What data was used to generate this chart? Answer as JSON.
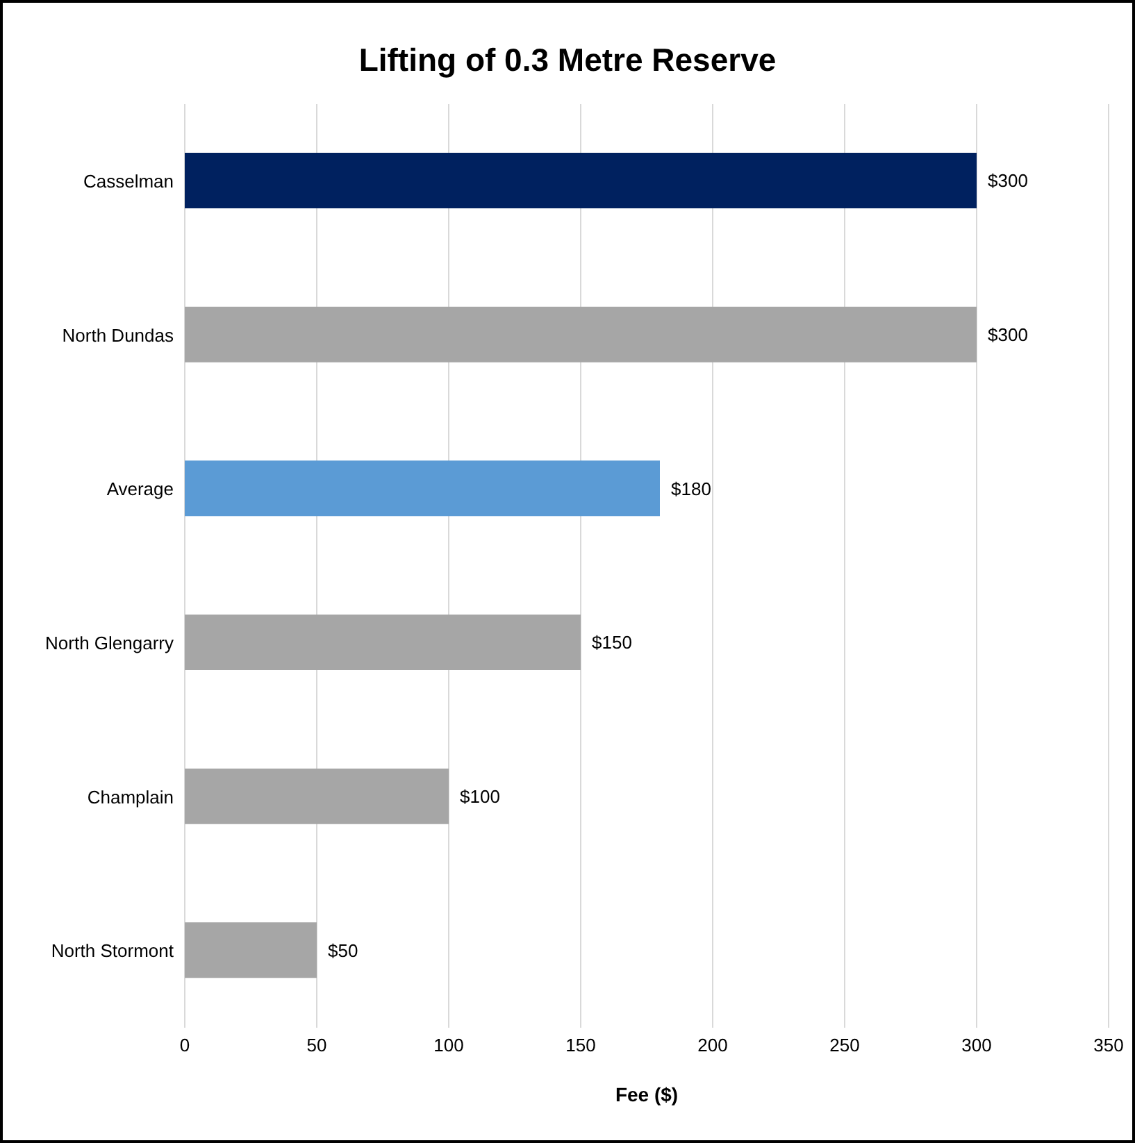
{
  "chart_data": {
    "type": "bar",
    "orientation": "horizontal",
    "title": "Lifting of 0.3 Metre Reserve",
    "xlabel": "Fee ($)",
    "categories": [
      "Casselman",
      "North Dundas",
      "Average",
      "North Glengarry",
      "Champlain",
      "North Stormont"
    ],
    "values": [
      300,
      300,
      180,
      150,
      100,
      50
    ],
    "colors": [
      "#00215f",
      "#a6a6a6",
      "#5b9bd5",
      "#a6a6a6",
      "#a6a6a6",
      "#a6a6a6"
    ],
    "value_labels": [
      "$300",
      "$300",
      "$180",
      "$150",
      "$100",
      "$50"
    ],
    "xlim": [
      0,
      350
    ],
    "xticks": [
      0,
      50,
      100,
      150,
      200,
      250,
      300,
      350
    ],
    "grid": "x"
  }
}
